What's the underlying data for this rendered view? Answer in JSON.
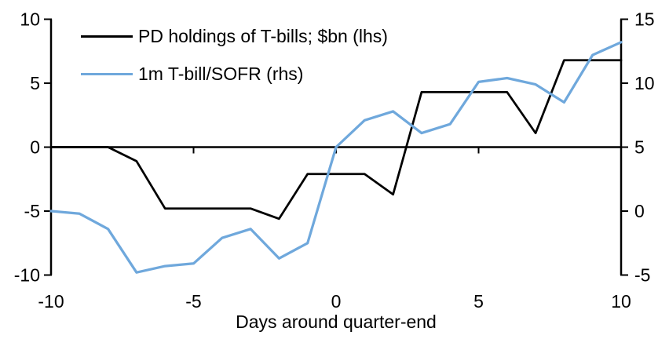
{
  "chart_data": {
    "type": "line",
    "title": "",
    "xlabel": "Days around quarter-end",
    "x": [
      -10,
      -9,
      -8,
      -7,
      -6,
      -5,
      -4,
      -3,
      -2,
      -1,
      0,
      1,
      2,
      3,
      4,
      5,
      6,
      7,
      8,
      9,
      10
    ],
    "series": [
      {
        "name": "PD holdings of T-bills; $bn (lhs)",
        "axis": "left",
        "color": "#000000",
        "values": [
          0,
          0,
          0,
          -1.1,
          -4.8,
          -4.8,
          -4.8,
          -4.8,
          -5.6,
          -2.1,
          -2.1,
          -2.1,
          -3.7,
          4.3,
          4.3,
          4.3,
          4.3,
          1.1,
          6.8,
          6.8,
          6.8
        ]
      },
      {
        "name": "1m T-bill/SOFR (rhs)",
        "axis": "right",
        "color": "#6FA8DC",
        "values": [
          0.0,
          -0.2,
          -1.4,
          -4.8,
          -4.3,
          -4.1,
          -2.1,
          -1.4,
          -3.7,
          -2.5,
          5.0,
          7.1,
          7.8,
          6.1,
          6.8,
          10.1,
          10.4,
          9.9,
          8.5,
          12.2,
          13.2
        ]
      }
    ],
    "left_axis": {
      "min": -10,
      "max": 10,
      "ticks": [
        10,
        5,
        0,
        -5,
        -10
      ]
    },
    "right_axis": {
      "min": -5,
      "max": 15,
      "ticks": [
        15,
        10,
        5,
        0,
        -5
      ]
    },
    "x_ticks": [
      -10,
      -5,
      0,
      5,
      10
    ],
    "grid": false,
    "legend_position": "top-left"
  }
}
